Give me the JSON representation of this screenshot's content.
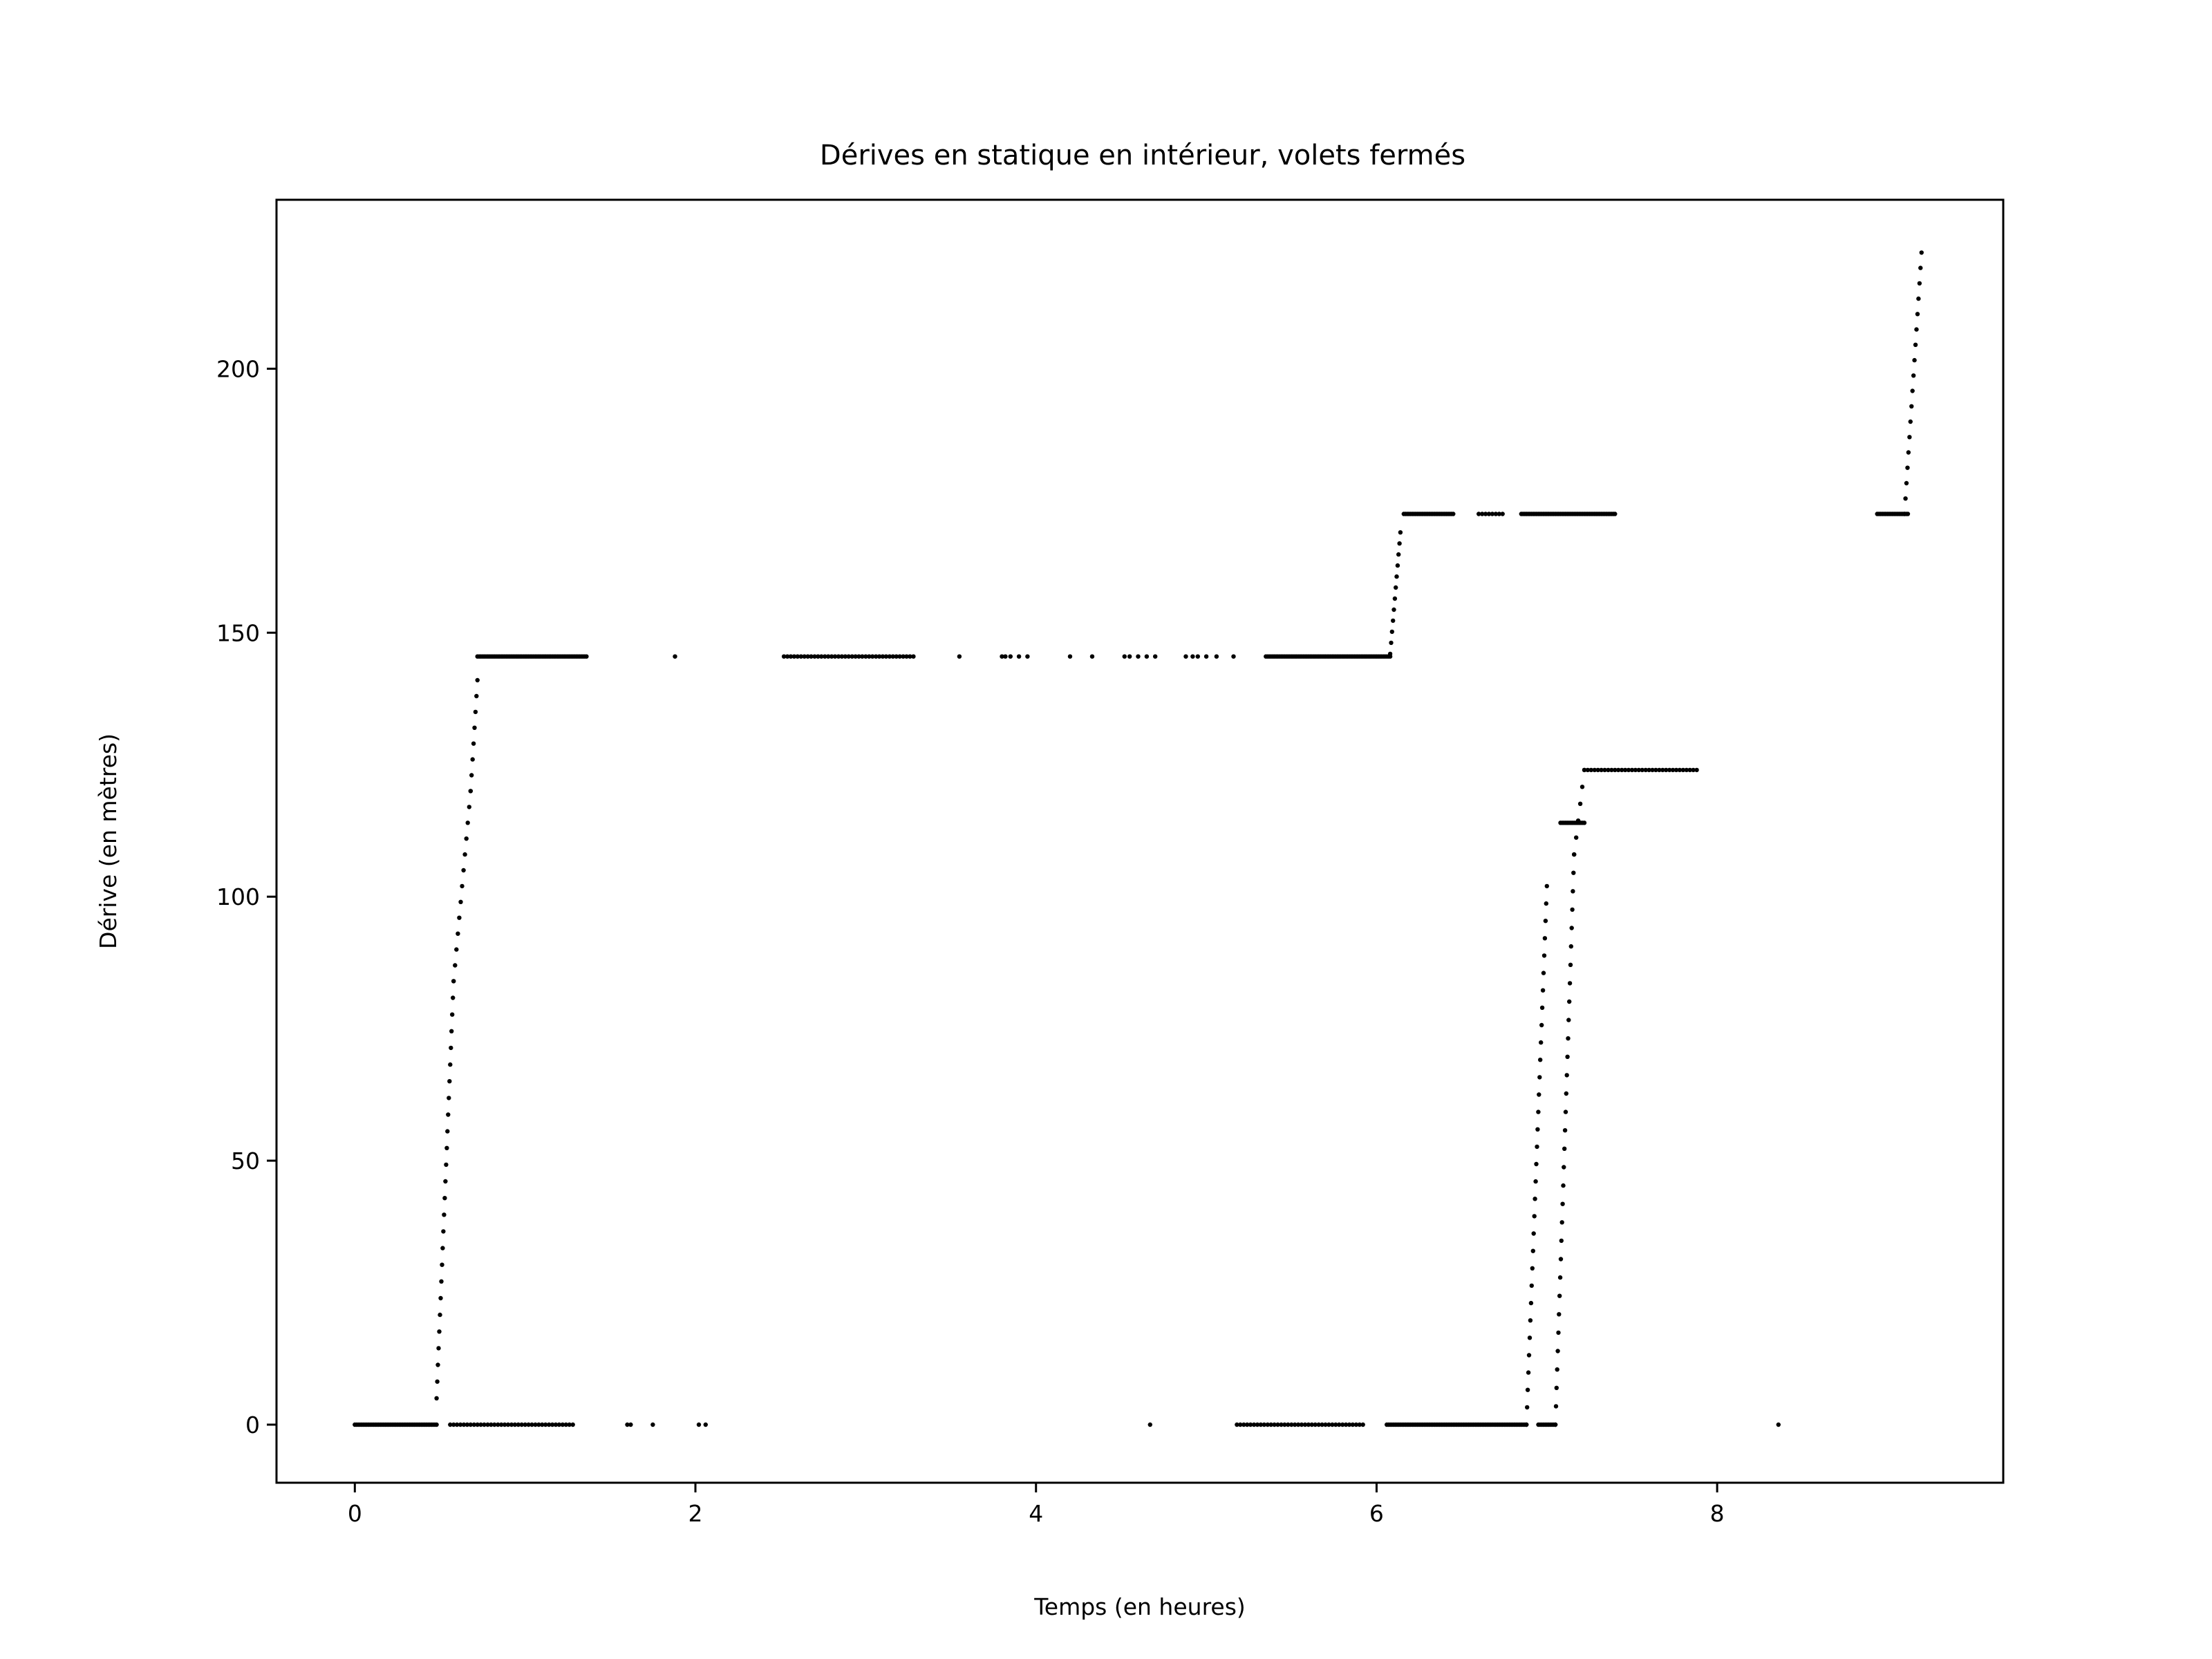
{
  "chart_data": {
    "type": "scatter",
    "title": "Dérives en statique en intérieur, volets fermés",
    "xlabel": "Temps (en heures)",
    "ylabel": "Dérive (en mètres)",
    "xlim": [
      -0.46,
      9.68
    ],
    "ylim": [
      -11,
      232
    ],
    "xticks": [
      0,
      2,
      4,
      6,
      8
    ],
    "yticks": [
      0,
      50,
      100,
      150,
      200
    ],
    "grid": false,
    "legend": null,
    "marker_color": "#000000",
    "series": [
      {
        "segments": [
          {
            "x0": 0.0,
            "x1": 0.48,
            "y": 0,
            "step": 0.01
          },
          {
            "x0": 0.56,
            "x1": 1.28,
            "y": 0,
            "step": 0.02
          },
          {
            "x": [
              1.6,
              1.62,
              1.75,
              2.02,
              2.06
            ],
            "y": 0
          },
          {
            "x": [
              4.67
            ],
            "y": 0
          },
          {
            "x0": 5.18,
            "x1": 5.92,
            "y": 0,
            "step": 0.02
          },
          {
            "x0": 6.06,
            "x1": 6.88,
            "y": 0,
            "step": 0.01
          },
          {
            "x0": 6.95,
            "x1": 7.05,
            "y": 0,
            "step": 0.01
          },
          {
            "x": [
              8.36
            ],
            "y": 0
          },
          {
            "x0": 0.72,
            "x1": 1.36,
            "y": 145.5,
            "step": 0.01
          },
          {
            "x": [
              1.88
            ],
            "y": 145.5
          },
          {
            "x0": 2.52,
            "x1": 3.28,
            "y": 145.5,
            "step": 0.02
          },
          {
            "x": [
              3.55,
              3.8,
              3.82,
              3.85,
              3.9,
              3.95,
              4.2,
              4.33,
              4.52,
              4.55,
              4.6,
              4.65,
              4.7,
              4.88,
              4.92,
              4.95,
              5.0,
              5.06,
              5.16
            ],
            "y": 145.5
          },
          {
            "x0": 5.35,
            "x1": 6.08,
            "y": 145.5,
            "step": 0.01
          },
          {
            "x0": 6.16,
            "x1": 6.45,
            "y": 172.5,
            "step": 0.01
          },
          {
            "x0": 6.6,
            "x1": 6.75,
            "y": 172.5,
            "step": 0.02
          },
          {
            "x0": 6.85,
            "x1": 7.4,
            "y": 172.5,
            "step": 0.01
          },
          {
            "x0": 8.94,
            "x1": 9.12,
            "y": 172.5,
            "step": 0.01
          },
          {
            "x0": 7.08,
            "x1": 7.22,
            "y": 114,
            "step": 0.01
          },
          {
            "x0": 7.22,
            "x1": 7.88,
            "y": 124,
            "step": 0.02
          },
          {
            "x0": 0.48,
            "y0": 5,
            "x1": 0.58,
            "y1": 84,
            "n": 26
          },
          {
            "x0": 0.58,
            "y0": 84,
            "x1": 0.68,
            "y1": 120,
            "n": 13
          },
          {
            "x0": 0.68,
            "y0": 120,
            "x1": 0.72,
            "y1": 141,
            "n": 8
          },
          {
            "x0": 6.08,
            "y0": 146,
            "x1": 6.14,
            "y1": 169,
            "n": 12
          },
          {
            "x0": 6.88,
            "y0": 0,
            "x1": 7.0,
            "y1": 102,
            "n": 32
          },
          {
            "x0": 7.05,
            "y0": 0,
            "x1": 7.16,
            "y1": 108,
            "n": 32
          },
          {
            "x0": 7.16,
            "y0": 108,
            "x1": 7.22,
            "y1": 124,
            "n": 6
          },
          {
            "x0": 9.1,
            "y0": 172.5,
            "x1": 9.2,
            "y1": 222,
            "n": 18
          }
        ]
      }
    ]
  }
}
